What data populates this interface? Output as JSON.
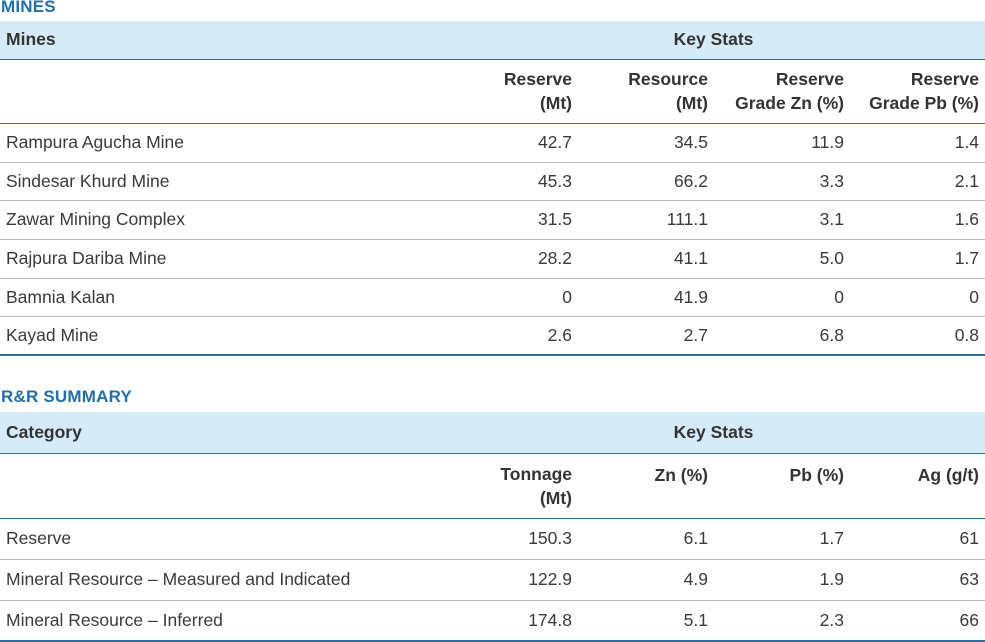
{
  "mines": {
    "section_title": "MINES",
    "col_name": "Mines",
    "col_group": "Key Stats",
    "sub_headers": [
      {
        "l1": "Reserve",
        "l2": "(Mt)"
      },
      {
        "l1": "Resource",
        "l2": "(Mt)"
      },
      {
        "l1": "Reserve",
        "l2": "Grade Zn (%)"
      },
      {
        "l1": "Reserve",
        "l2": "Grade Pb (%)"
      }
    ],
    "rows": [
      {
        "name": "Rampura Agucha Mine",
        "v": [
          "42.7",
          "34.5",
          "11.9",
          "1.4"
        ]
      },
      {
        "name": "Sindesar Khurd Mine",
        "v": [
          "45.3",
          "66.2",
          "3.3",
          "2.1"
        ]
      },
      {
        "name": "Zawar Mining Complex",
        "v": [
          "31.5",
          "111.1",
          "3.1",
          "1.6"
        ]
      },
      {
        "name": "Rajpura Dariba Mine",
        "v": [
          "28.2",
          "41.1",
          "5.0",
          "1.7"
        ]
      },
      {
        "name": "Bamnia Kalan",
        "v": [
          "0",
          "41.9",
          "0",
          "0"
        ]
      },
      {
        "name": "Kayad Mine",
        "v": [
          "2.6",
          "2.7",
          "6.8",
          "0.8"
        ]
      }
    ]
  },
  "summary": {
    "section_title": "R&R SUMMARY",
    "col_name": "Category",
    "col_group": "Key Stats",
    "sub_headers": [
      {
        "l1": "Tonnage",
        "l2": "(Mt)"
      },
      {
        "l1": "Zn (%)",
        "l2": ""
      },
      {
        "l1": "Pb (%)",
        "l2": ""
      },
      {
        "l1": "Ag (g/t)",
        "l2": ""
      }
    ],
    "rows": [
      {
        "name": "Reserve",
        "v": [
          "150.3",
          "6.1",
          "1.7",
          "61"
        ]
      },
      {
        "name": "Mineral Resource – Measured and Indicated",
        "v": [
          "122.9",
          "4.9",
          "1.9",
          "63"
        ]
      },
      {
        "name": "Mineral Resource – Inferred",
        "v": [
          "174.8",
          "5.1",
          "2.3",
          "66"
        ]
      }
    ]
  }
}
